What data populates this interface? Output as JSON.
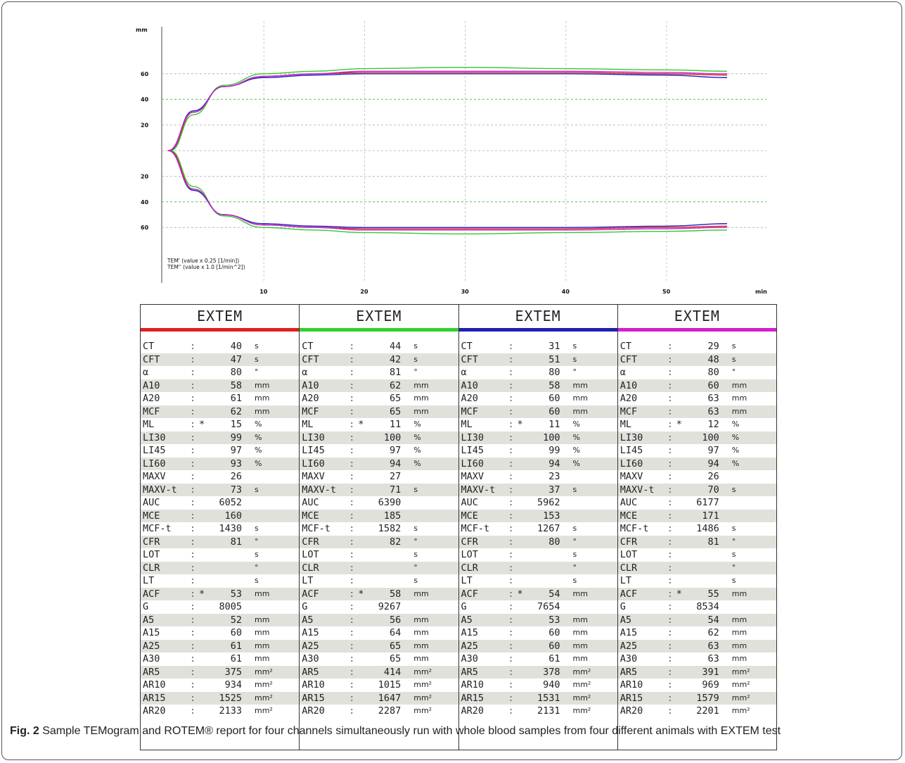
{
  "chart_data": {
    "type": "line",
    "yunit": "mm",
    "xunit": "min",
    "y_ticks_top": [
      "60",
      "40",
      "20"
    ],
    "y_ticks_bottom": [
      "20",
      "40",
      "60"
    ],
    "x_ticks": [
      "10",
      "20",
      "30",
      "40",
      "50"
    ],
    "xlim": [
      0,
      56
    ],
    "ylim": [
      -75,
      75
    ],
    "legend_lines": [
      "TEM' (value x 0.25  [1/min])",
      "TEM'' (value x 1.0  [1/min^2])"
    ],
    "series": [
      {
        "color": "#d62020",
        "ct_min": 0.67,
        "points": [
          [
            0.67,
            0
          ],
          [
            3,
            30
          ],
          [
            6,
            50
          ],
          [
            10,
            58
          ],
          [
            15,
            60
          ],
          [
            20,
            61
          ],
          [
            30,
            61
          ],
          [
            40,
            61
          ],
          [
            50,
            60
          ],
          [
            56,
            59
          ]
        ]
      },
      {
        "color": "#2ecc2e",
        "ct_min": 0.73,
        "points": [
          [
            0.73,
            0
          ],
          [
            3,
            28
          ],
          [
            6,
            51
          ],
          [
            10,
            60
          ],
          [
            15,
            62
          ],
          [
            20,
            64
          ],
          [
            30,
            65
          ],
          [
            40,
            64
          ],
          [
            50,
            63
          ],
          [
            56,
            62
          ]
        ]
      },
      {
        "color": "#2020c0",
        "ct_min": 0.52,
        "points": [
          [
            0.52,
            0
          ],
          [
            3,
            31
          ],
          [
            6,
            50
          ],
          [
            10,
            57
          ],
          [
            15,
            59
          ],
          [
            20,
            60
          ],
          [
            30,
            60
          ],
          [
            40,
            60
          ],
          [
            50,
            59
          ],
          [
            56,
            57
          ]
        ]
      },
      {
        "color": "#d020d0",
        "ct_min": 0.48,
        "points": [
          [
            0.48,
            0
          ],
          [
            3,
            30
          ],
          [
            6,
            50
          ],
          [
            10,
            58
          ],
          [
            15,
            60
          ],
          [
            20,
            62
          ],
          [
            30,
            62
          ],
          [
            40,
            62
          ],
          [
            50,
            61
          ],
          [
            56,
            60
          ]
        ]
      }
    ]
  },
  "report": {
    "channels": [
      {
        "title": "EXTEM",
        "color": "#e02020",
        "rows": [
          [
            "CT",
            "",
            "40",
            "s"
          ],
          [
            "CFT",
            "",
            "47",
            "s"
          ],
          [
            "α",
            "",
            "80",
            "°"
          ],
          [
            "A10",
            "",
            "58",
            "mm"
          ],
          [
            "A20",
            "",
            "61",
            "mm"
          ],
          [
            "MCF",
            "",
            "62",
            "mm"
          ],
          [
            "ML",
            "*",
            "15",
            "%"
          ],
          [
            "LI30",
            "",
            "99",
            "%"
          ],
          [
            "LI45",
            "",
            "97",
            "%"
          ],
          [
            "LI60",
            "",
            "93",
            "%"
          ],
          [
            "MAXV",
            "",
            "26",
            ""
          ],
          [
            "MAXV-t",
            "",
            "73",
            "s"
          ],
          [
            "AUC",
            "",
            "6052",
            ""
          ],
          [
            "MCE",
            "",
            "160",
            ""
          ],
          [
            "MCF-t",
            "",
            "1430",
            "s"
          ],
          [
            "CFR",
            "",
            "81",
            "°"
          ],
          [
            "LOT",
            "",
            "",
            "s"
          ],
          [
            "CLR",
            "",
            "",
            "°"
          ],
          [
            "LT",
            "",
            "",
            "s"
          ],
          [
            "ACF",
            "*",
            "53",
            "mm"
          ],
          [
            "G",
            "",
            "8005",
            ""
          ],
          [
            "A5",
            "",
            "52",
            "mm"
          ],
          [
            "A15",
            "",
            "60",
            "mm"
          ],
          [
            "A25",
            "",
            "61",
            "mm"
          ],
          [
            "A30",
            "",
            "61",
            "mm"
          ],
          [
            "AR5",
            "",
            "375",
            "mm²"
          ],
          [
            "AR10",
            "",
            "934",
            "mm²"
          ],
          [
            "AR15",
            "",
            "1525",
            "mm²"
          ],
          [
            "AR20",
            "",
            "2133",
            "mm²"
          ]
        ]
      },
      {
        "title": "EXTEM",
        "color": "#30d030",
        "rows": [
          [
            "CT",
            "",
            "44",
            "s"
          ],
          [
            "CFT",
            "",
            "42",
            "s"
          ],
          [
            "α",
            "",
            "81",
            "°"
          ],
          [
            "A10",
            "",
            "62",
            "mm"
          ],
          [
            "A20",
            "",
            "65",
            "mm"
          ],
          [
            "MCF",
            "",
            "65",
            "mm"
          ],
          [
            "ML",
            "*",
            "11",
            "%"
          ],
          [
            "LI30",
            "",
            "100",
            "%"
          ],
          [
            "LI45",
            "",
            "97",
            "%"
          ],
          [
            "LI60",
            "",
            "94",
            "%"
          ],
          [
            "MAXV",
            "",
            "27",
            ""
          ],
          [
            "MAXV-t",
            "",
            "71",
            "s"
          ],
          [
            "AUC",
            "",
            "6390",
            ""
          ],
          [
            "MCE",
            "",
            "185",
            ""
          ],
          [
            "MCF-t",
            "",
            "1582",
            "s"
          ],
          [
            "CFR",
            "",
            "82",
            "°"
          ],
          [
            "LOT",
            "",
            "",
            "s"
          ],
          [
            "CLR",
            "",
            "",
            "°"
          ],
          [
            "LT",
            "",
            "",
            "s"
          ],
          [
            "ACF",
            "*",
            "58",
            "mm"
          ],
          [
            "G",
            "",
            "9267",
            ""
          ],
          [
            "A5",
            "",
            "56",
            "mm"
          ],
          [
            "A15",
            "",
            "64",
            "mm"
          ],
          [
            "A25",
            "",
            "65",
            "mm"
          ],
          [
            "A30",
            "",
            "65",
            "mm"
          ],
          [
            "AR5",
            "",
            "414",
            "mm²"
          ],
          [
            "AR10",
            "",
            "1015",
            "mm²"
          ],
          [
            "AR15",
            "",
            "1647",
            "mm²"
          ],
          [
            "AR20",
            "",
            "2287",
            "mm²"
          ]
        ]
      },
      {
        "title": "EXTEM",
        "color": "#2020b0",
        "rows": [
          [
            "CT",
            "",
            "31",
            "s"
          ],
          [
            "CFT",
            "",
            "51",
            "s"
          ],
          [
            "α",
            "",
            "80",
            "°"
          ],
          [
            "A10",
            "",
            "58",
            "mm"
          ],
          [
            "A20",
            "",
            "60",
            "mm"
          ],
          [
            "MCF",
            "",
            "60",
            "mm"
          ],
          [
            "ML",
            "*",
            "11",
            "%"
          ],
          [
            "LI30",
            "",
            "100",
            "%"
          ],
          [
            "LI45",
            "",
            "99",
            "%"
          ],
          [
            "LI60",
            "",
            "94",
            "%"
          ],
          [
            "MAXV",
            "",
            "23",
            ""
          ],
          [
            "MAXV-t",
            "",
            "37",
            "s"
          ],
          [
            "AUC",
            "",
            "5962",
            ""
          ],
          [
            "MCE",
            "",
            "153",
            ""
          ],
          [
            "MCF-t",
            "",
            "1267",
            "s"
          ],
          [
            "CFR",
            "",
            "80",
            "°"
          ],
          [
            "LOT",
            "",
            "",
            "s"
          ],
          [
            "CLR",
            "",
            "",
            "°"
          ],
          [
            "LT",
            "",
            "",
            "s"
          ],
          [
            "ACF",
            "*",
            "54",
            "mm"
          ],
          [
            "G",
            "",
            "7654",
            ""
          ],
          [
            "A5",
            "",
            "53",
            "mm"
          ],
          [
            "A15",
            "",
            "60",
            "mm"
          ],
          [
            "A25",
            "",
            "60",
            "mm"
          ],
          [
            "A30",
            "",
            "61",
            "mm"
          ],
          [
            "AR5",
            "",
            "378",
            "mm²"
          ],
          [
            "AR10",
            "",
            "940",
            "mm²"
          ],
          [
            "AR15",
            "",
            "1531",
            "mm²"
          ],
          [
            "AR20",
            "",
            "2131",
            "mm²"
          ]
        ]
      },
      {
        "title": "EXTEM",
        "color": "#d020d0",
        "rows": [
          [
            "CT",
            "",
            "29",
            "s"
          ],
          [
            "CFT",
            "",
            "48",
            "s"
          ],
          [
            "α",
            "",
            "80",
            "°"
          ],
          [
            "A10",
            "",
            "60",
            "mm"
          ],
          [
            "A20",
            "",
            "63",
            "mm"
          ],
          [
            "MCF",
            "",
            "63",
            "mm"
          ],
          [
            "ML",
            "*",
            "12",
            "%"
          ],
          [
            "LI30",
            "",
            "100",
            "%"
          ],
          [
            "LI45",
            "",
            "97",
            "%"
          ],
          [
            "LI60",
            "",
            "94",
            "%"
          ],
          [
            "MAXV",
            "",
            "26",
            ""
          ],
          [
            "MAXV-t",
            "",
            "70",
            "s"
          ],
          [
            "AUC",
            "",
            "6177",
            ""
          ],
          [
            "MCE",
            "",
            "171",
            ""
          ],
          [
            "MCF-t",
            "",
            "1486",
            "s"
          ],
          [
            "CFR",
            "",
            "81",
            "°"
          ],
          [
            "LOT",
            "",
            "",
            "s"
          ],
          [
            "CLR",
            "",
            "",
            "°"
          ],
          [
            "LT",
            "",
            "",
            "s"
          ],
          [
            "ACF",
            "*",
            "55",
            "mm"
          ],
          [
            "G",
            "",
            "8534",
            ""
          ],
          [
            "A5",
            "",
            "54",
            "mm"
          ],
          [
            "A15",
            "",
            "62",
            "mm"
          ],
          [
            "A25",
            "",
            "63",
            "mm"
          ],
          [
            "A30",
            "",
            "63",
            "mm"
          ],
          [
            "AR5",
            "",
            "391",
            "mm²"
          ],
          [
            "AR10",
            "",
            "969",
            "mm²"
          ],
          [
            "AR15",
            "",
            "1579",
            "mm²"
          ],
          [
            "AR20",
            "",
            "2201",
            "mm²"
          ]
        ]
      }
    ]
  },
  "caption": {
    "label": "Fig. 2",
    "text": " Sample TEMogram and ROTEM® report for four channels simultaneously run with whole blood samples from four different animals with EXTEM test"
  }
}
